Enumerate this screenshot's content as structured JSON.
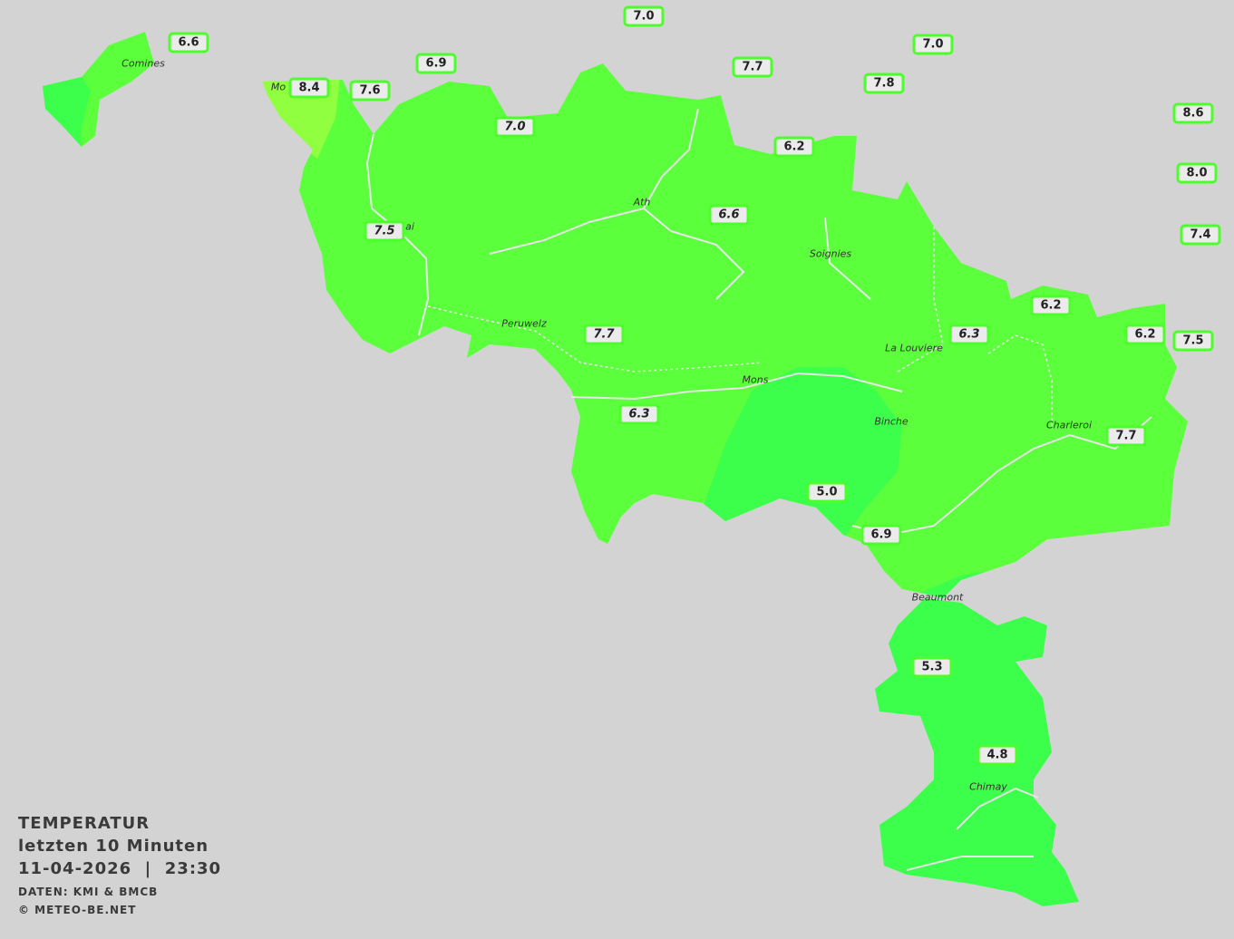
{
  "map": {
    "region_colors": {
      "background": "#d3d3d3",
      "main": "#5cff3c",
      "cool": "#3bff4a",
      "warm": "#8fff40",
      "rivers": "#e6e6e6",
      "label_border": "#4cff2a"
    },
    "stations": [
      {
        "value": "7.0"
      },
      {
        "value": "6.6"
      },
      {
        "value": "6.9"
      },
      {
        "value": "7.7"
      },
      {
        "value": "7.0"
      },
      {
        "value": "7.8"
      },
      {
        "value": "8.4"
      },
      {
        "value": "7.6"
      },
      {
        "value": "7.0"
      },
      {
        "value": "6.2"
      },
      {
        "value": "8.6"
      },
      {
        "value": "8.0"
      },
      {
        "value": "7.4"
      },
      {
        "value": "7.5"
      },
      {
        "value": "6.6"
      },
      {
        "value": "6.2"
      },
      {
        "value": "6.3"
      },
      {
        "value": "6.2"
      },
      {
        "value": "7.5"
      },
      {
        "value": "7.7"
      },
      {
        "value": "6.3"
      },
      {
        "value": "7.7"
      },
      {
        "value": "5.0"
      },
      {
        "value": "6.9"
      },
      {
        "value": "5.3"
      },
      {
        "value": "4.8"
      }
    ],
    "cities": [
      "Comines",
      "Mo",
      "ai",
      "Ath",
      "Soignies",
      "Peruwelz",
      "La Louviere",
      "Mons",
      "Binche",
      "Charleroi",
      "Beaumont",
      "Chimay"
    ]
  },
  "legend": {
    "title": "TEMPERATUR",
    "period": "letzten 10 Minuten",
    "datetime": "11-04-2026  |  23:30",
    "source": "DATEN: KMI & BMCB",
    "copyright": "© METEO-BE.NET"
  }
}
